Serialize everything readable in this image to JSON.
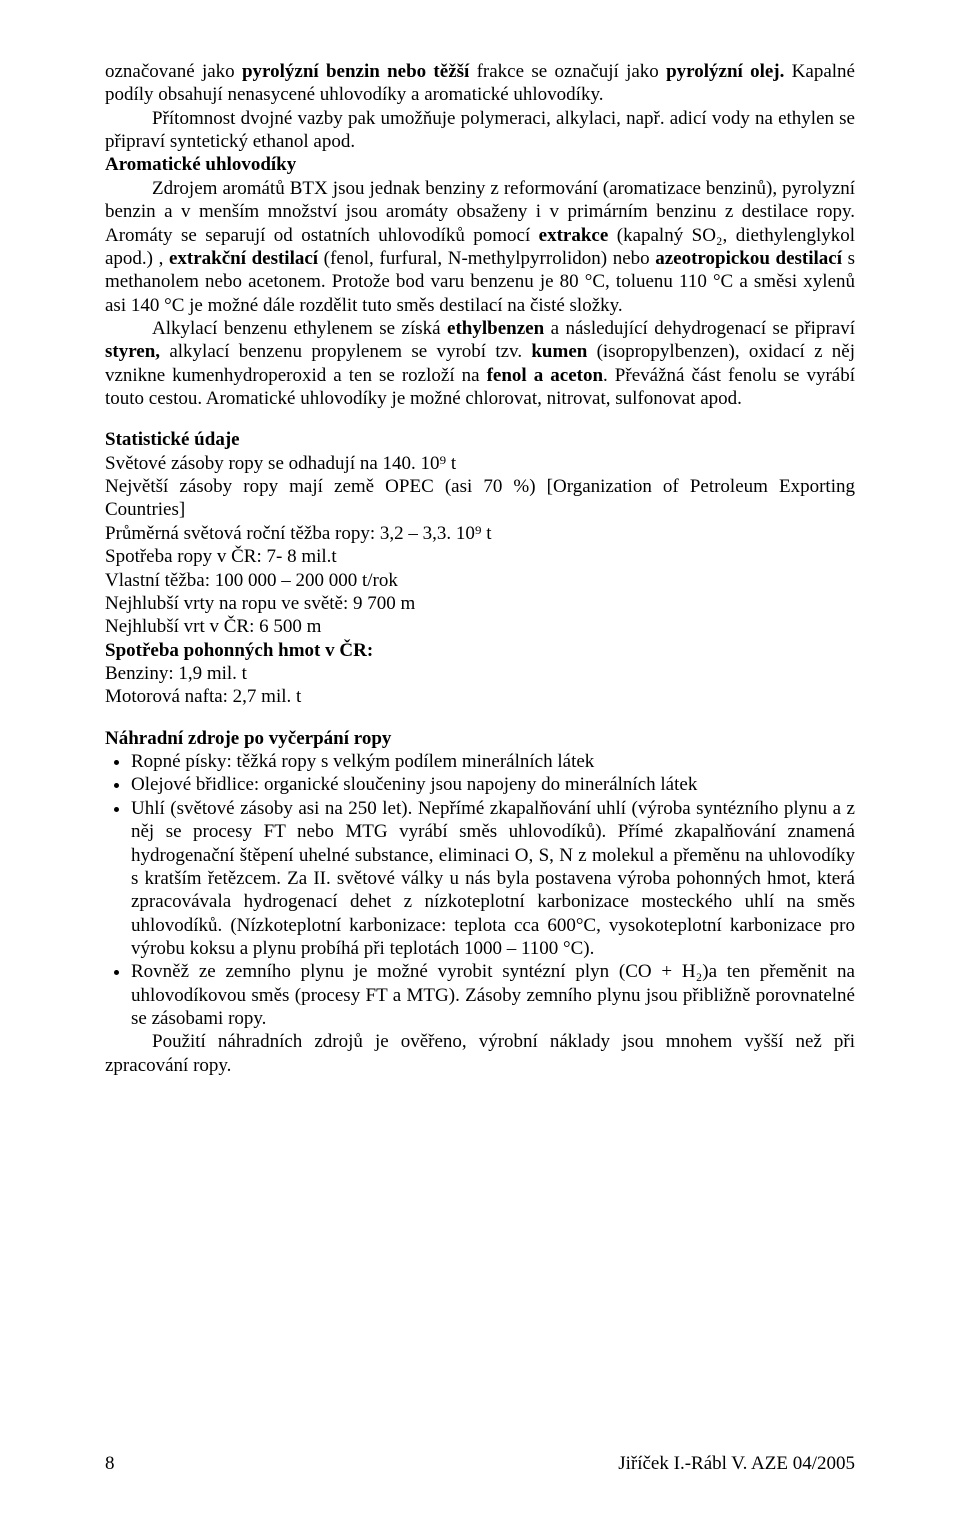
{
  "intro": {
    "p1_pre": "označované jako ",
    "p1_b1": "pyrolýzní benzin nebo těžší",
    "p1_mid1": "  frakce se označují jako ",
    "p1_b2": "pyrolýzní olej.",
    "p1_post": " Kapalné podíly obsahují nenasycené uhlovodíky a aromatické uhlovodíky.",
    "p2": "Přítomnost dvojné vazby pak umožňuje polymeraci, alkylaci, např. adicí vody na ethylen se připraví syntetický ethanol apod.",
    "p3_title": "Aromatické uhlovodíky",
    "p4_pre": "Zdrojem aromátů BTX jsou jednak benziny z reformování (aromatizace benzinů), pyrolyzní benzin a v menším množství jsou aromáty obsaženy i v primárním benzinu z destilace ropy. Aromáty se separují od ostatních uhlovodíků pomocí ",
    "p4_b1": "extrakce",
    "p4_mid1": " (kapalný SO₂, diethylenglykol apod.) , ",
    "p4_b2": "extrakční destilací",
    "p4_mid2": " (fenol, furfural, N-methylpyrrolidon)  nebo ",
    "p4_b3": "azeotropickou destilací",
    "p4_post": " s methanolem nebo acetonem. Protože bod varu benzenu je 80 °C, toluenu 110 °C a směsi xylenů asi 140 °C je možné  dále rozdělit tuto směs destilací na čisté složky.",
    "p5_pre": "Alkylací benzenu ethylenem se získá ",
    "p5_b1": "ethylbenzen",
    "p5_mid1": " a následující dehydrogenací se připraví ",
    "p5_b2": "styren,",
    "p5_mid2": " alkylací benzenu propylenem se vyrobí tzv. ",
    "p5_b3": "kumen",
    "p5_mid3": " (isopropylbenzen), oxidací z něj vznikne kumenhydroperoxid a ten se rozloží na ",
    "p5_b4": "fenol a aceton",
    "p5_post": ". Převážná část fenolu se vyrábí touto cestou. Aromatické uhlovodíky je možné chlorovat, nitrovat, sulfonovat apod."
  },
  "stats": {
    "title": "Statistické údaje",
    "l1": "Světové zásoby ropy se odhadují na 140. 10⁹ t",
    "l2": "Největší zásoby ropy mají země OPEC (asi 70 %) [Organization of Petroleum Exporting Countries]",
    "l3": "Průměrná světová roční těžba ropy: 3,2 – 3,3. 10⁹ t",
    "l4": "Spotřeba ropy v ČR: 7- 8  mil.t",
    "l5": "Vlastní těžba: 100 000 – 200 000 t/rok",
    "l6": "Nejhlubší vrty na ropu ve světě: 9 700 m",
    "l7": "Nejhlubší vrt v ČR: 6 500 m",
    "l8": "Spotřeba pohonných hmot v ČR:",
    "l9": "Benziny: 1,9 mil. t",
    "l10": "Motorová nafta: 2,7 mil. t"
  },
  "alt": {
    "title": "Náhradní zdroje po vyčerpání ropy",
    "b1": "Ropné písky: těžká ropy s velkým podílem minerálních látek",
    "b2": "Olejové břidlice: organické sloučeniny jsou napojeny do minerálních látek",
    "b3": "Uhlí (světové zásoby asi na 250 let). Nepřímé zkapalňování uhlí (výroba syntézního plynu a z něj se procesy FT nebo MTG vyrábí směs uhlovodíků). Přímé zkapalňování znamená hydrogenační štěpení uhelné substance, eliminaci O, S, N z molekul a přeměnu na uhlovodíky s kratším řetězcem. Za II. světové války u nás byla postavena výroba pohonných hmot, která  zpracovávala hydrogenací dehet z nízkoteplotní karbonizace mosteckého  uhlí na směs uhlovodíků. (Nízkoteplotní karbonizace: teplota cca 600°C, vysokoteplotní karbonizace pro výrobu koksu a plynu probíhá při teplotách 1000 – 1100 °C).",
    "b4": "Rovněž ze zemního plynu je možné vyrobit syntézní plyn (CO + H₂)a ten přeměnit na uhlovodíkovou směs (procesy FT a MTG). Zásoby zemního plynu jsou přibližně porovnatelné se zásobami ropy.",
    "after": "Použití náhradních zdrojů je ověřeno, výrobní náklady jsou mnohem vyšší než při zpracování ropy."
  },
  "footer": {
    "page": "8",
    "credit": "Jiříček I.-Rábl V. AZE 04/2005"
  }
}
